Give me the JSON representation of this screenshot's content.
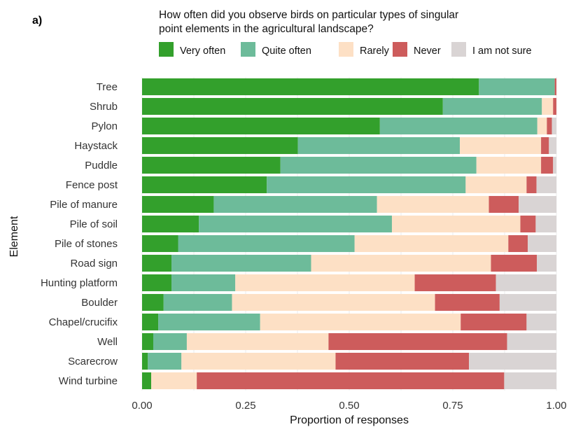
{
  "chart_data": {
    "type": "bar",
    "orientation": "horizontal",
    "stacked": true,
    "panel_label": "a)",
    "title_lines": [
      "How often did you observe birds on particular types of singular",
      "point elements in the agricultural landscape?"
    ],
    "xlabel": "Proportion of responses",
    "ylabel": "Element",
    "xlim": [
      0,
      1
    ],
    "x_ticks": [
      "0.00",
      "0.25",
      "0.50",
      "0.75",
      "1.00"
    ],
    "legend_position": "top",
    "grid": true,
    "categories": [
      "Tree",
      "Shrub",
      "Pylon",
      "Haystack",
      "Puddle",
      "Fence post",
      "Pile of manure",
      "Pile of soil",
      "Pile of stones",
      "Road sign",
      "Hunting platform",
      "Boulder",
      "Chapel/crucifix",
      "Well",
      "Scarecrow",
      "Wind turbine"
    ],
    "series": [
      {
        "name": "Very often",
        "color": "#33a02c",
        "values": [
          0.813,
          0.726,
          0.574,
          0.376,
          0.334,
          0.301,
          0.173,
          0.137,
          0.087,
          0.071,
          0.071,
          0.052,
          0.039,
          0.027,
          0.014,
          0.022
        ]
      },
      {
        "name": "Quite often",
        "color": "#6dbb9a",
        "values": [
          0.183,
          0.239,
          0.38,
          0.391,
          0.473,
          0.48,
          0.394,
          0.466,
          0.426,
          0.337,
          0.154,
          0.165,
          0.246,
          0.081,
          0.081,
          0.0
        ]
      },
      {
        "name": "Rarely",
        "color": "#fde0c5",
        "values": [
          0.0,
          0.027,
          0.023,
          0.196,
          0.156,
          0.147,
          0.27,
          0.31,
          0.371,
          0.434,
          0.433,
          0.49,
          0.484,
          0.342,
          0.372,
          0.11
        ]
      },
      {
        "name": "Never",
        "color": "#cd5c5c",
        "values": [
          0.004,
          0.008,
          0.012,
          0.019,
          0.029,
          0.024,
          0.072,
          0.037,
          0.047,
          0.111,
          0.196,
          0.156,
          0.159,
          0.431,
          0.322,
          0.742
        ]
      },
      {
        "name": "I am not sure",
        "color": "#d9d4d4",
        "values": [
          0.0,
          0.0,
          0.011,
          0.018,
          0.008,
          0.048,
          0.091,
          0.05,
          0.069,
          0.047,
          0.146,
          0.137,
          0.072,
          0.119,
          0.211,
          0.126
        ]
      }
    ]
  }
}
